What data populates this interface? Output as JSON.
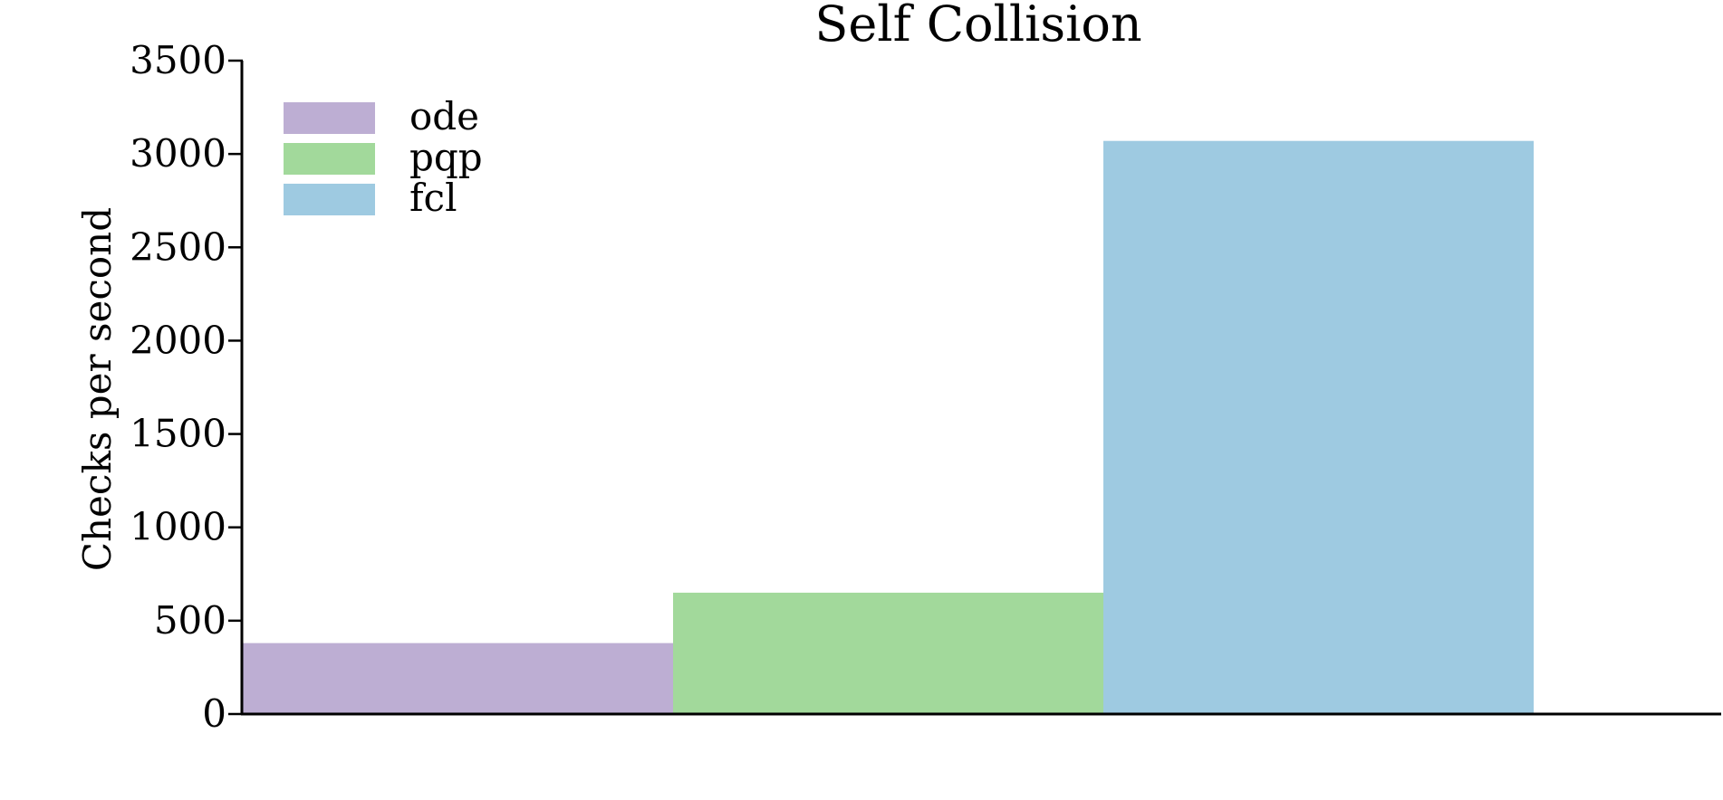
{
  "chart_data": {
    "type": "bar",
    "title": "Self Collision",
    "xlabel": "",
    "ylabel": "Checks per second",
    "ylim": [
      0,
      3500
    ],
    "yticks": [
      0,
      500,
      1000,
      1500,
      2000,
      2500,
      3000,
      3500
    ],
    "grid": false,
    "legend_position": "top-left",
    "series": [
      {
        "name": "ode",
        "value": 380,
        "color": "#bdaed3"
      },
      {
        "name": "pqp",
        "value": 650,
        "color": "#a2d99b"
      },
      {
        "name": "fcl",
        "value": 3070,
        "color": "#9ecae1"
      }
    ]
  }
}
